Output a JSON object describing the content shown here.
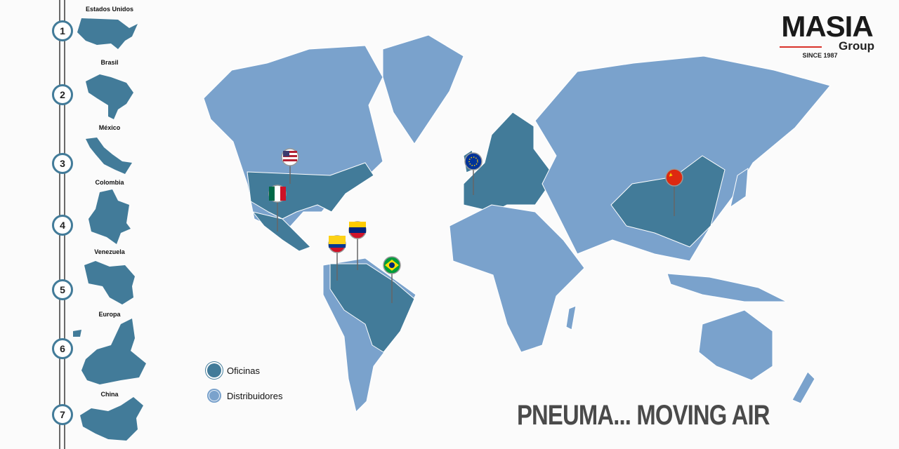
{
  "colors": {
    "offices": "#427b99",
    "distributors": "#7aa2cc"
  },
  "timeline": [
    {
      "num": "1",
      "country": "Estados Unidos"
    },
    {
      "num": "2",
      "country": "Brasil"
    },
    {
      "num": "3",
      "country": "México"
    },
    {
      "num": "4",
      "country": "Colombia"
    },
    {
      "num": "5",
      "country": "Venezuela"
    },
    {
      "num": "6",
      "country": "Europa"
    },
    {
      "num": "7",
      "country": "China"
    }
  ],
  "logo": {
    "name": "MASIA",
    "sub": "Group",
    "since": "SINCE 1987"
  },
  "legend": {
    "offices": "Oficinas",
    "distributors": "Distribuidores"
  },
  "slogan": "PNEUMA... MOVING AIR",
  "pins": [
    "usa-flag",
    "mexico-flag",
    "venezuela-flag",
    "colombia-flag",
    "brazil-flag",
    "eu-flag",
    "china-flag"
  ]
}
